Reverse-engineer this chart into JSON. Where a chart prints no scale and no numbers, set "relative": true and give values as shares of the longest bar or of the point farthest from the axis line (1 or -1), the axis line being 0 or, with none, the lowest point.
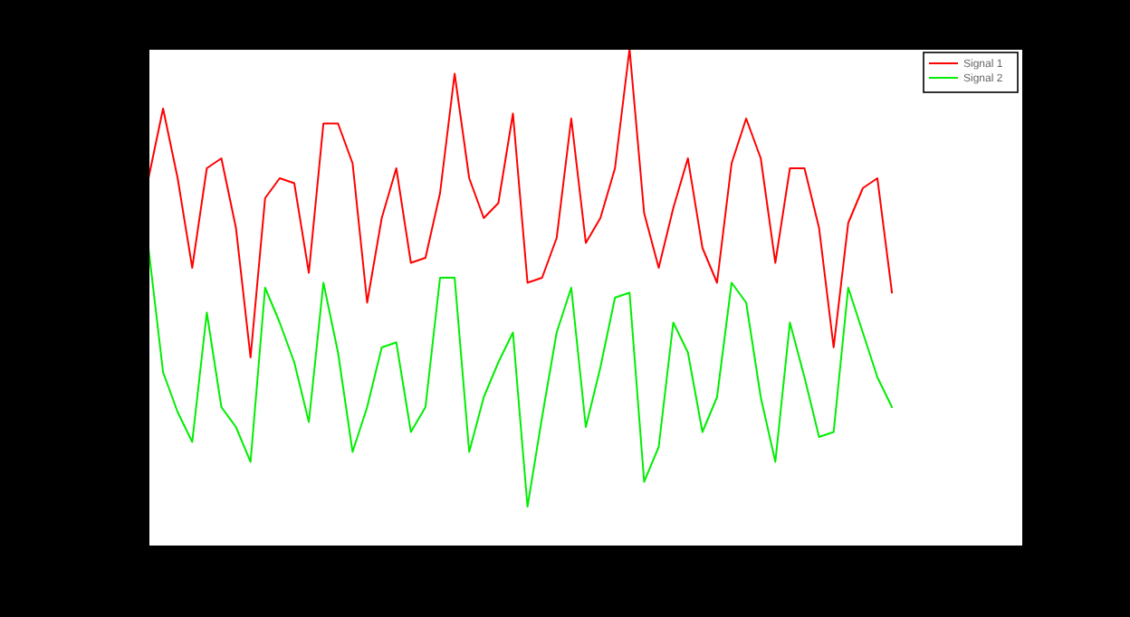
{
  "chart_data": {
    "type": "line",
    "relative": true,
    "categories": [
      null,
      null,
      null,
      null,
      null,
      null,
      null,
      null,
      null,
      null,
      null,
      null,
      null,
      null,
      null,
      null,
      null,
      null,
      null,
      null,
      null,
      null,
      null,
      null,
      null,
      null,
      null,
      null,
      null,
      null,
      null,
      null,
      null,
      null,
      null,
      null,
      null,
      null,
      null,
      null,
      null,
      null,
      null,
      null,
      null,
      null,
      null,
      null,
      null,
      null,
      null,
      null,
      null,
      null,
      null,
      null,
      null,
      null,
      null,
      null,
      null
    ],
    "legend": "top right",
    "grid": false,
    "marker": "none",
    "line_style": "solid",
    "series": [
      {
        "name": "Signal 1",
        "color": "#ff0000",
        "values": [
          0.74,
          0.88,
          0.74,
          0.56,
          0.76,
          0.78,
          0.64,
          0.38,
          0.7,
          0.74,
          0.73,
          0.55,
          0.85,
          0.85,
          0.77,
          0.49,
          0.66,
          0.76,
          0.57,
          0.58,
          0.71,
          0.95,
          0.74,
          0.66,
          0.69,
          0.87,
          0.53,
          0.54,
          0.62,
          0.86,
          0.61,
          0.66,
          0.76,
          1,
          0.67,
          0.56,
          0.68,
          0.78,
          0.6,
          0.53,
          0.77,
          0.86,
          0.78,
          0.57,
          0.76,
          0.76,
          0.64,
          0.4,
          0.65,
          0.72,
          0.74,
          0.51,
          null,
          null,
          null,
          null,
          null,
          null,
          null,
          null,
          null
        ]
      },
      {
        "name": "Signal 2",
        "color": "#00ee00",
        "values": [
          0.6,
          0.35,
          0.27,
          0.21,
          0.47,
          0.28,
          0.24,
          0.17,
          0.52,
          0.45,
          0.37,
          0.25,
          0.53,
          0.39,
          0.19,
          0.28,
          0.4,
          0.41,
          0.23,
          0.28,
          0.54,
          0.54,
          0.19,
          0.3,
          0.37,
          0.43,
          0.08,
          0.26,
          0.43,
          0.52,
          0.24,
          0.36,
          0.5,
          0.51,
          0.13,
          0.2,
          0.45,
          0.39,
          0.23,
          0.3,
          0.53,
          0.49,
          0.3,
          0.17,
          0.45,
          0.34,
          0.22,
          0.23,
          0.52,
          0.43,
          0.34,
          0.28,
          null,
          null,
          null,
          null,
          null,
          null,
          null,
          null,
          null
        ]
      }
    ]
  }
}
